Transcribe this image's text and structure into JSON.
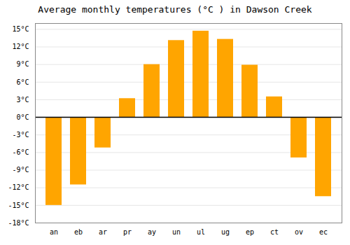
{
  "chart_data": {
    "type": "bar",
    "title": "Average monthly temperatures (°C ) in Dawson Creek",
    "categories": [
      "an",
      "eb",
      "ar",
      "pr",
      "ay",
      "un",
      "ul",
      "ug",
      "ep",
      "ct",
      "ov",
      "ec"
    ],
    "values": [
      -15.0,
      -11.5,
      -5.2,
      3.2,
      9.0,
      13.1,
      14.7,
      13.3,
      8.9,
      3.5,
      -6.9,
      -13.5
    ],
    "color": "#FFA500",
    "ylim": [
      -18,
      16
    ],
    "yticks": [
      {
        "value": -18,
        "label": "-18°C"
      },
      {
        "value": -15,
        "label": "-15°C"
      },
      {
        "value": -12,
        "label": "-12°C"
      },
      {
        "value": -9,
        "label": "-9°C"
      },
      {
        "value": -6,
        "label": "-6°C"
      },
      {
        "value": -3,
        "label": "-3°C"
      },
      {
        "value": 0,
        "label": "0°C"
      },
      {
        "value": 3,
        "label": "3°C"
      },
      {
        "value": 6,
        "label": "6°C"
      },
      {
        "value": 9,
        "label": "9°C"
      },
      {
        "value": 12,
        "label": "12°C"
      },
      {
        "value": 15,
        "label": "15°C"
      }
    ],
    "grid": true
  }
}
